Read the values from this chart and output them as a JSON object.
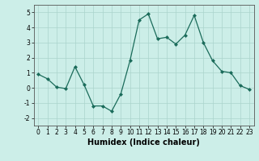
{
  "x": [
    0,
    1,
    2,
    3,
    4,
    5,
    6,
    7,
    8,
    9,
    10,
    11,
    12,
    13,
    14,
    15,
    16,
    17,
    18,
    19,
    20,
    21,
    22,
    23
  ],
  "y": [
    0.9,
    0.6,
    0.05,
    -0.05,
    1.4,
    0.2,
    -1.2,
    -1.2,
    -1.55,
    -0.4,
    1.8,
    4.5,
    4.9,
    3.25,
    3.35,
    2.9,
    3.5,
    4.8,
    3.0,
    1.8,
    1.1,
    1.0,
    0.15,
    -0.1
  ],
  "line_color": "#1a6b5a",
  "marker": "D",
  "markersize": 2.0,
  "linewidth": 0.9,
  "xlabel": "Humidex (Indice chaleur)",
  "xlabel_fontsize": 7,
  "xlabel_fontweight": "bold",
  "ylim": [
    -2.5,
    5.5
  ],
  "xlim": [
    -0.5,
    23.5
  ],
  "yticks": [
    -2,
    -1,
    0,
    1,
    2,
    3,
    4,
    5
  ],
  "xtick_labels": [
    "0",
    "1",
    "2",
    "3",
    "4",
    "5",
    "6",
    "7",
    "8",
    "9",
    "10",
    "11",
    "12",
    "13",
    "14",
    "15",
    "16",
    "17",
    "18",
    "19",
    "20",
    "21",
    "22",
    "23"
  ],
  "background_color": "#cceee8",
  "grid_color": "#aad4cc",
  "tick_fontsize": 5.5,
  "spine_color": "#555555"
}
